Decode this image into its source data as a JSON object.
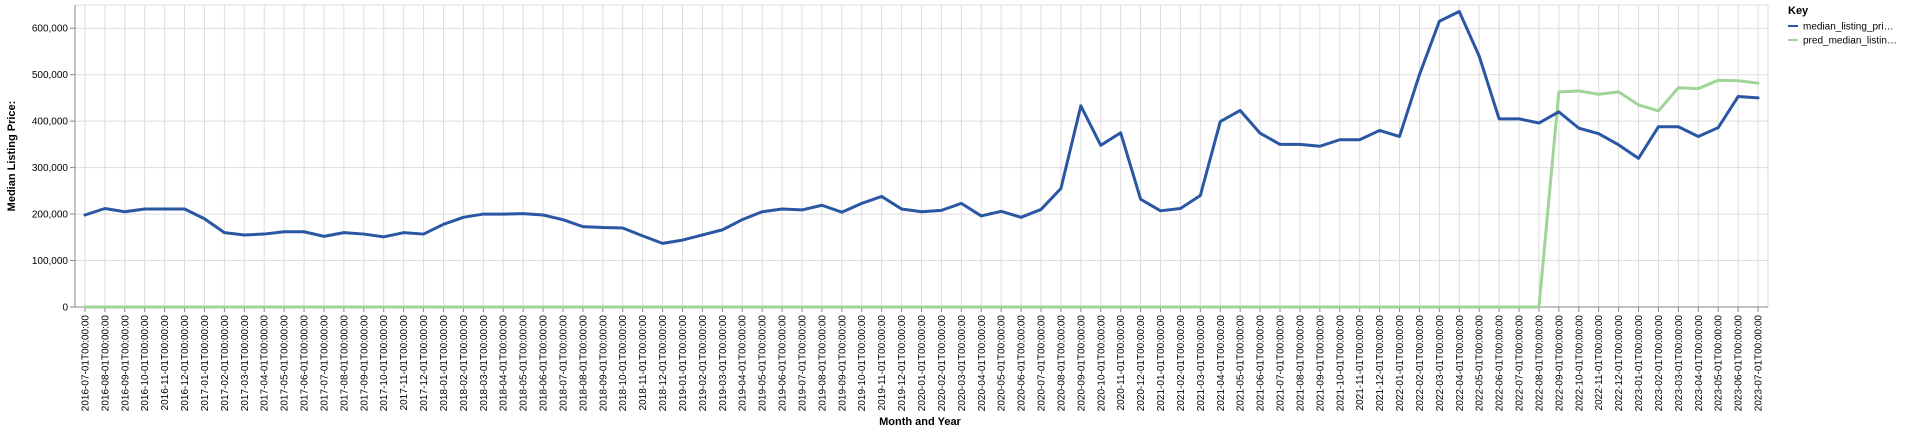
{
  "chart_data": {
    "type": "line",
    "title": "",
    "xlabel": "Month and Year",
    "ylabel": "Median Listing Price:",
    "ylim": [
      0,
      650000
    ],
    "y_ticks": [
      0,
      100000,
      200000,
      300000,
      400000,
      500000,
      600000
    ],
    "y_tick_labels": [
      "0",
      "100,000",
      "200,000",
      "300,000",
      "400,000",
      "500,000",
      "600,000"
    ],
    "grid": true,
    "legend": {
      "title": "Key",
      "position": "right"
    },
    "x": [
      "2016-07-01T00:00:00",
      "2016-08-01T00:00:00",
      "2016-09-01T00:00:00",
      "2016-10-01T00:00:00",
      "2016-11-01T00:00:00",
      "2016-12-01T00:00:00",
      "2017-01-01T00:00:00",
      "2017-02-01T00:00:00",
      "2017-03-01T00:00:00",
      "2017-04-01T00:00:00",
      "2017-05-01T00:00:00",
      "2017-06-01T00:00:00",
      "2017-07-01T00:00:00",
      "2017-08-01T00:00:00",
      "2017-09-01T00:00:00",
      "2017-10-01T00:00:00",
      "2017-11-01T00:00:00",
      "2017-12-01T00:00:00",
      "2018-01-01T00:00:00",
      "2018-02-01T00:00:00",
      "2018-03-01T00:00:00",
      "2018-04-01T00:00:00",
      "2018-05-01T00:00:00",
      "2018-06-01T00:00:00",
      "2018-07-01T00:00:00",
      "2018-08-01T00:00:00",
      "2018-09-01T00:00:00",
      "2018-10-01T00:00:00",
      "2018-11-01T00:00:00",
      "2018-12-01T00:00:00",
      "2019-01-01T00:00:00",
      "2019-02-01T00:00:00",
      "2019-03-01T00:00:00",
      "2019-04-01T00:00:00",
      "2019-05-01T00:00:00",
      "2019-06-01T00:00:00",
      "2019-07-01T00:00:00",
      "2019-08-01T00:00:00",
      "2019-09-01T00:00:00",
      "2019-10-01T00:00:00",
      "2019-11-01T00:00:00",
      "2019-12-01T00:00:00",
      "2020-01-01T00:00:00",
      "2020-02-01T00:00:00",
      "2020-03-01T00:00:00",
      "2020-04-01T00:00:00",
      "2020-05-01T00:00:00",
      "2020-06-01T00:00:00",
      "2020-07-01T00:00:00",
      "2020-08-01T00:00:00",
      "2020-09-01T00:00:00",
      "2020-10-01T00:00:00",
      "2020-11-01T00:00:00",
      "2020-12-01T00:00:00",
      "2021-01-01T00:00:00",
      "2021-02-01T00:00:00",
      "2021-03-01T00:00:00",
      "2021-04-01T00:00:00",
      "2021-05-01T00:00:00",
      "2021-06-01T00:00:00",
      "2021-07-01T00:00:00",
      "2021-08-01T00:00:00",
      "2021-09-01T00:00:00",
      "2021-10-01T00:00:00",
      "2021-11-01T00:00:00",
      "2021-12-01T00:00:00",
      "2022-01-01T00:00:00",
      "2022-02-01T00:00:00",
      "2022-03-01T00:00:00",
      "2022-04-01T00:00:00",
      "2022-05-01T00:00:00",
      "2022-06-01T00:00:00",
      "2022-07-01T00:00:00",
      "2022-08-01T00:00:00",
      "2022-09-01T00:00:00",
      "2022-10-01T00:00:00",
      "2022-11-01T00:00:00",
      "2022-12-01T00:00:00",
      "2023-01-01T00:00:00",
      "2023-02-01T00:00:00",
      "2023-03-01T00:00:00",
      "2023-04-01T00:00:00",
      "2023-05-01T00:00:00",
      "2023-06-01T00:00:00",
      "2023-07-01T00:00:00"
    ],
    "series": [
      {
        "name": "median_listing_pri…",
        "color": "#2a57a3",
        "values": [
          198000,
          212000,
          205000,
          211000,
          211000,
          211000,
          190000,
          160000,
          155000,
          157000,
          162000,
          162000,
          152000,
          160000,
          157000,
          151000,
          160000,
          157000,
          178000,
          193000,
          200000,
          200000,
          201000,
          198000,
          188000,
          173000,
          171000,
          170000,
          153000,
          137000,
          144000,
          155000,
          166000,
          188000,
          205000,
          211000,
          209000,
          219000,
          204000,
          223000,
          238000,
          211000,
          205000,
          208000,
          223000,
          196000,
          206000,
          193000,
          210000,
          255000,
          433000,
          348000,
          375000,
          232000,
          207000,
          212000,
          240000,
          399000,
          423000,
          374000,
          350000,
          350000,
          346000,
          360000,
          360000,
          380000,
          367000,
          500000,
          615000,
          636000,
          540000,
          405000,
          405000,
          396000,
          420000,
          385000,
          373000,
          349000,
          320000,
          388000,
          388000,
          367000,
          386000,
          453000,
          450000
        ]
      },
      {
        "name": "pred_median_listin…",
        "color": "#9fd597",
        "values": [
          0,
          0,
          0,
          0,
          0,
          0,
          0,
          0,
          0,
          0,
          0,
          0,
          0,
          0,
          0,
          0,
          0,
          0,
          0,
          0,
          0,
          0,
          0,
          0,
          0,
          0,
          0,
          0,
          0,
          0,
          0,
          0,
          0,
          0,
          0,
          0,
          0,
          0,
          0,
          0,
          0,
          0,
          0,
          0,
          0,
          0,
          0,
          0,
          0,
          0,
          0,
          0,
          0,
          0,
          0,
          0,
          0,
          0,
          0,
          0,
          0,
          0,
          0,
          0,
          0,
          0,
          0,
          0,
          0,
          0,
          0,
          0,
          0,
          0,
          463000,
          465000,
          458000,
          463000,
          435000,
          422000,
          472000,
          470000,
          488000,
          487000,
          482000
        ]
      }
    ]
  }
}
